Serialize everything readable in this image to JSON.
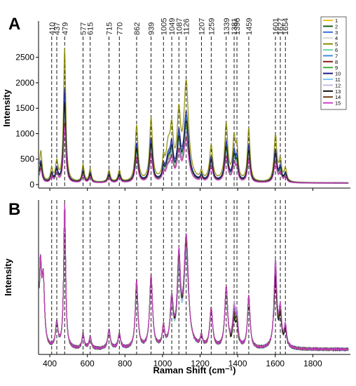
{
  "chart_data": [
    {
      "type": "line",
      "panel_label": "A",
      "ylabel": "Intensity",
      "xlim": [
        340,
        2000
      ],
      "ylim": [
        -80,
        2750
      ],
      "y_ticks": [
        0,
        500,
        1000,
        1500,
        2000,
        2500
      ],
      "x_ticks": [
        400,
        600,
        800,
        1000,
        1200,
        1400,
        1600,
        1800
      ],
      "peak_markers": [
        410,
        437,
        479,
        577,
        615,
        715,
        770,
        862,
        939,
        1005,
        1049,
        1087,
        1126,
        1207,
        1259,
        1339,
        1381,
        1396,
        1459,
        1601,
        1627,
        1654
      ],
      "legend": [
        "1",
        "2",
        "3",
        "4",
        "5",
        "6",
        "7",
        "8",
        "9",
        "10",
        "11",
        "12",
        "13",
        "14",
        "15"
      ],
      "series_colors": [
        "#f0c419",
        "#1c5a1c",
        "#3a6fd8",
        "#d9d9d9",
        "#8a8a00",
        "#6fd6b0",
        "#4090e0",
        "#8b1c1c",
        "#3cb33c",
        "#1c1c8c",
        "#7ec8f0",
        "#c8b8e8",
        "#111111",
        "#6b3e1c",
        "#d040d0"
      ],
      "peak_heights_series_5": [
        {
          "x": 352,
          "y": 650
        },
        {
          "x": 437,
          "y": 380
        },
        {
          "x": 479,
          "y": 2620
        },
        {
          "x": 577,
          "y": 340
        },
        {
          "x": 615,
          "y": 260
        },
        {
          "x": 715,
          "y": 230
        },
        {
          "x": 770,
          "y": 230
        },
        {
          "x": 862,
          "y": 1100
        },
        {
          "x": 939,
          "y": 1230
        },
        {
          "x": 1005,
          "y": 350
        },
        {
          "x": 1049,
          "y": 1050
        },
        {
          "x": 1087,
          "y": 1500
        },
        {
          "x": 1126,
          "y": 1920
        },
        {
          "x": 1207,
          "y": 160
        },
        {
          "x": 1259,
          "y": 700
        },
        {
          "x": 1339,
          "y": 1120
        },
        {
          "x": 1381,
          "y": 850
        },
        {
          "x": 1459,
          "y": 1050
        },
        {
          "x": 1601,
          "y": 920
        },
        {
          "x": 1654,
          "y": 300
        }
      ]
    },
    {
      "type": "line",
      "panel_label": "B",
      "ylabel": "Intensity",
      "xlabel": "Raman Shift (cm⁻¹)",
      "xlim": [
        340,
        2000
      ],
      "x_ticks": [
        400,
        600,
        800,
        1000,
        1200,
        1400,
        1600,
        1800
      ],
      "peak_markers": [
        410,
        437,
        479,
        577,
        615,
        715,
        770,
        862,
        939,
        1005,
        1049,
        1087,
        1126,
        1207,
        1259,
        1339,
        1381,
        1396,
        1459,
        1601,
        1627,
        1654
      ],
      "note": "normalized spectra, no y tick labels"
    }
  ]
}
